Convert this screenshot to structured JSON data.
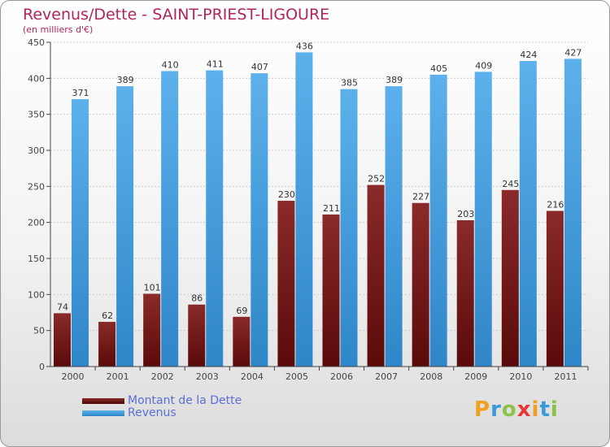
{
  "chart_data": {
    "type": "bar",
    "title": "Revenus/Dette - SAINT-PRIEST-LIGOURE",
    "subtitle": "(en milliers d'€)",
    "categories": [
      "2000",
      "2001",
      "2002",
      "2003",
      "2004",
      "2005",
      "2006",
      "2007",
      "2008",
      "2009",
      "2010",
      "2011"
    ],
    "series": [
      {
        "name": "Montant de la Dette",
        "values": [
          74,
          62,
          101,
          86,
          69,
          230,
          211,
          252,
          227,
          203,
          245,
          216
        ],
        "color": "#7a1a1a"
      },
      {
        "name": "Revenus",
        "values": [
          371,
          389,
          410,
          411,
          407,
          436,
          385,
          389,
          405,
          409,
          424,
          427
        ],
        "color": "#4aa3e4"
      }
    ],
    "ylim": [
      0,
      450
    ],
    "yticks": [
      0,
      50,
      100,
      150,
      200,
      250,
      300,
      350,
      400,
      450
    ],
    "grid": true,
    "legend": "bottom-left"
  },
  "logo": {
    "letters": [
      "P",
      "r",
      "o",
      "x",
      "i",
      "t",
      "i"
    ],
    "colors": [
      "#f0a020",
      "#3a9ad9",
      "#8bc34a",
      "#e53935",
      "#f0a020",
      "#3a9ad9",
      "#8bc34a"
    ]
  }
}
